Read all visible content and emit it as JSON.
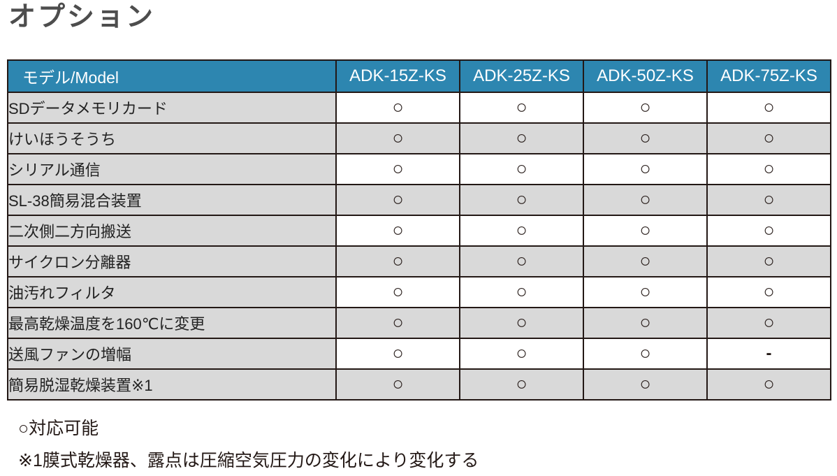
{
  "page": {
    "title": "オプション"
  },
  "table": {
    "model_header": "モデル/Model",
    "models": [
      "ADK-15Z-KS",
      "ADK-25Z-KS",
      "ADK-50Z-KS",
      "ADK-75Z-KS"
    ],
    "mark_available": "○",
    "mark_unavailable": "-",
    "rows": [
      {
        "label": "SDデータメモリカード",
        "values": [
          "○",
          "○",
          "○",
          "○"
        ]
      },
      {
        "label": "けいほうそうち",
        "values": [
          "○",
          "○",
          "○",
          "○"
        ]
      },
      {
        "label": "シリアル通信",
        "values": [
          "○",
          "○",
          "○",
          "○"
        ]
      },
      {
        "label": "SL-38簡易混合装置",
        "values": [
          "○",
          "○",
          "○",
          "○"
        ]
      },
      {
        "label": "二次側二方向搬送",
        "values": [
          "○",
          "○",
          "○",
          "○"
        ]
      },
      {
        "label": "サイクロン分離器",
        "values": [
          "○",
          "○",
          "○",
          "○"
        ]
      },
      {
        "label": "油汚れフィルタ",
        "values": [
          "○",
          "○",
          "○",
          "○"
        ]
      },
      {
        "label": "最高乾燥温度を160℃に変更",
        "values": [
          "○",
          "○",
          "○",
          "○"
        ]
      },
      {
        "label": "送風ファンの増幅",
        "values": [
          "○",
          "○",
          "○",
          "-"
        ]
      },
      {
        "label": "簡易脱湿乾燥装置※1",
        "values": [
          "○",
          "○",
          "○",
          "○"
        ]
      }
    ]
  },
  "notes": {
    "legend": "○対応可能",
    "footnote": "※1膜式乾燥器、露点は圧縮空気圧力の変化により変化する"
  },
  "colors": {
    "header_bg": "#2d86b0",
    "header_text": "#ffffff",
    "row_gray": "#d9d9d9",
    "row_white": "#ffffff",
    "border": "#231815",
    "title_text": "#4d4d4d"
  }
}
